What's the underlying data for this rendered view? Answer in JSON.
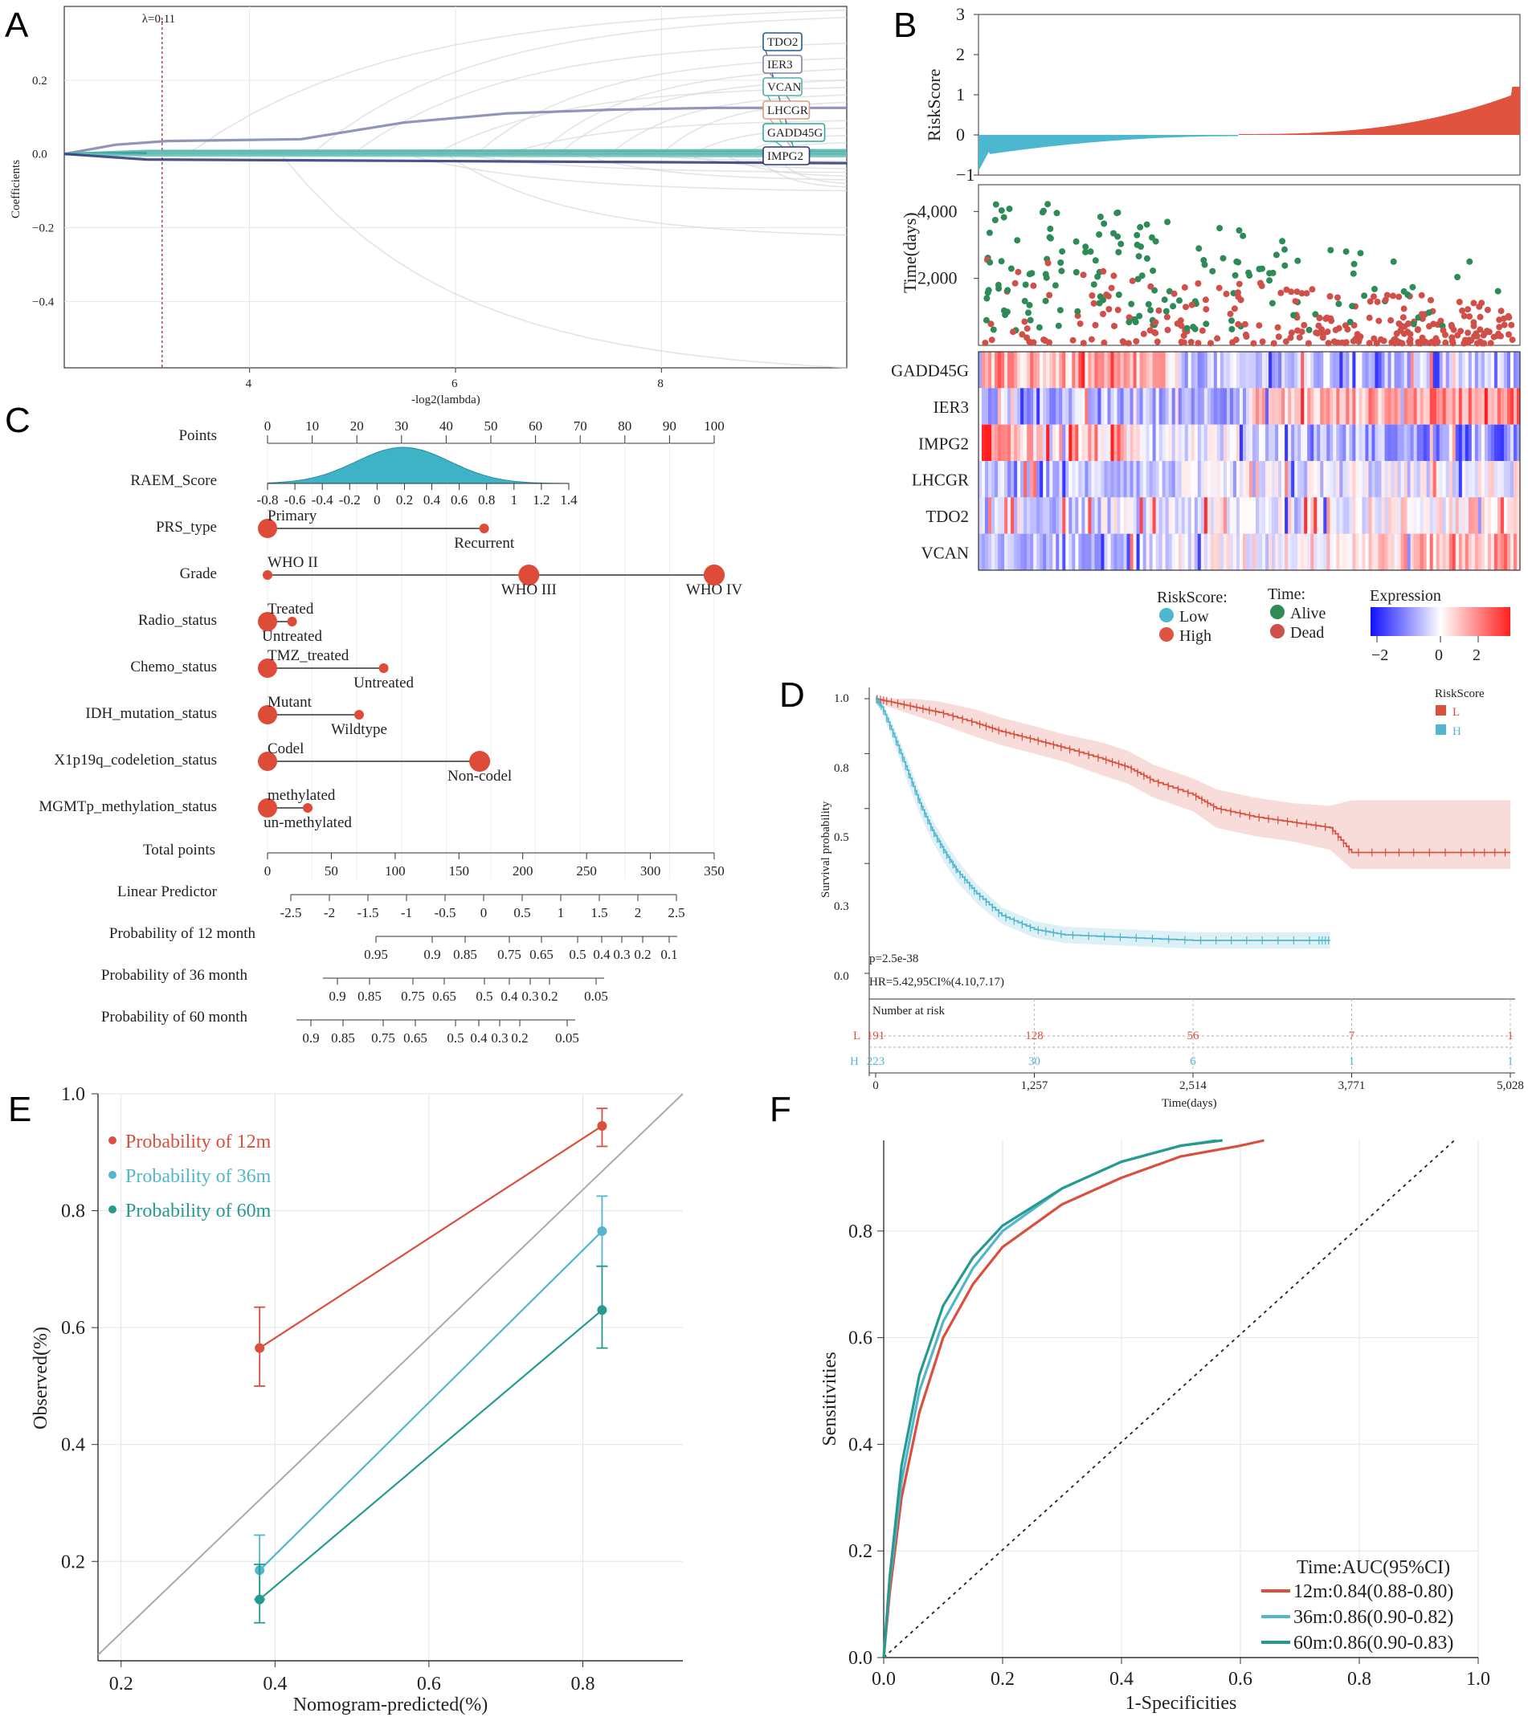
{
  "panels": {
    "A": "A",
    "B": "B",
    "C": "C",
    "D": "D",
    "E": "E",
    "F": "F"
  },
  "chart_data": [
    {
      "id": "A",
      "type": "line",
      "title": "",
      "xlabel": "-log2(lambda)",
      "ylabel": "Coefficients",
      "xticks": [
        "4",
        "6",
        "8"
      ],
      "yticks": [
        "0.2",
        "0.0",
        "−0.2",
        "−0.4"
      ],
      "xlim": [
        2.2,
        9.8
      ],
      "ylim": [
        -0.58,
        0.4
      ],
      "lambda_label": "λ=0.11",
      "lambda_x": 3.15,
      "series": [
        {
          "name": "TDO2",
          "color": "#1f5c8f",
          "x": [
            2.2,
            3.0,
            4.5,
            9.8
          ],
          "y": [
            0,
            0,
            0,
            0
          ]
        },
        {
          "name": "IER3",
          "color": "#7d83ad",
          "x": [
            2.2,
            2.7,
            3.2,
            4.5,
            5.5,
            6.5,
            7.5,
            8.5,
            9.8
          ],
          "y": [
            0,
            0.025,
            0.035,
            0.04,
            0.085,
            0.11,
            0.12,
            0.125,
            0.125
          ]
        },
        {
          "name": "VCAN",
          "color": "#4fb1a7",
          "x": [
            2.2,
            3.0,
            9.8
          ],
          "y": [
            0,
            0.008,
            0.01
          ]
        },
        {
          "name": "LHCGR",
          "color": "#2fa89c",
          "x": [
            2.2,
            3.0,
            9.8
          ],
          "y": [
            0,
            0.003,
            0.004
          ]
        },
        {
          "name": "GADD45G",
          "color": "#76c4bc",
          "x": [
            2.2,
            3.0,
            9.8
          ],
          "y": [
            0,
            -0.004,
            -0.006
          ]
        },
        {
          "name": "IMPG2",
          "color": "#2b3675",
          "x": [
            2.2,
            3.0,
            9.8
          ],
          "y": [
            0,
            -0.015,
            -0.025
          ]
        }
      ],
      "gene_labels": [
        "TDO2",
        "IER3",
        "VCAN",
        "LHCGR",
        "GADD45G",
        "IMPG2"
      ]
    },
    {
      "id": "B",
      "type": "bar",
      "title": "",
      "ylabel_top": "RiskScore",
      "yticks_top": [
        "3",
        "2",
        "1",
        "0",
        "−1"
      ],
      "ylabel_mid": "Time(days)",
      "yticks_mid": [
        "4,000",
        "2,000"
      ],
      "heatmap_genes": [
        "GADD45G",
        "IER3",
        "IMPG2",
        "LHCGR",
        "TDO2",
        "VCAN"
      ],
      "legend_risk_title": "RiskScore:",
      "legend_risk": [
        "Low",
        "High"
      ],
      "legend_time_title": "Time:",
      "legend_time": [
        "Alive",
        "Dead"
      ],
      "legend_expr_title": "Expression",
      "legend_expr_ticks": [
        "−2",
        "0",
        "2"
      ],
      "colors": {
        "low": "#4bb8d0",
        "high": "#e0533e",
        "alive": "#2e8b57",
        "dead": "#d04f49"
      }
    },
    {
      "id": "C",
      "type": "table",
      "title": "",
      "rows": [
        "Points",
        "RAEM_Score",
        "PRS_type",
        "Grade",
        "Radio_status",
        "Chemo_status",
        "IDH_mutation_status",
        "X1p19q_codeletion_status",
        "MGMTp_methylation_status",
        "Total points",
        "Linear Predictor",
        "Probability of 12 month",
        "Probability of 36 month",
        "Probability of 60 month"
      ],
      "points_ticks": [
        "0",
        "10",
        "20",
        "30",
        "40",
        "50",
        "60",
        "70",
        "80",
        "90",
        "100"
      ],
      "raem_ticks": [
        "-0.8",
        "-0.6",
        "-0.4",
        "-0.2",
        "0",
        "0.2",
        "0.4",
        "0.6",
        "0.8",
        "1",
        "1.2",
        "1.4"
      ],
      "categorical": [
        {
          "row": "PRS_type",
          "a": "Primary",
          "a_pts": 0,
          "b": "Recurrent",
          "b_pts": 48.5
        },
        {
          "row": "Grade",
          "a": "WHO II",
          "a_pts": 0,
          "b": "WHO IV",
          "b_pts": 100,
          "c": "WHO III",
          "c_pts": 58.5
        },
        {
          "row": "Radio_status",
          "a": "Treated",
          "a_pts": 0,
          "b": "Untreated",
          "b_pts": 5.5
        },
        {
          "row": "Chemo_status",
          "a": "TMZ_treated",
          "a_pts": 0,
          "b": "Untreated",
          "b_pts": 26
        },
        {
          "row": "IDH_mutation_status",
          "a": "Mutant",
          "a_pts": 0,
          "b": "Wildtype",
          "b_pts": 20.5
        },
        {
          "row": "X1p19q_codeletion_status",
          "a": "Codel",
          "a_pts": 0,
          "b": "Non-codel",
          "b_pts": 47.5
        },
        {
          "row": "MGMTp_methylation_status",
          "a": "methylated",
          "a_pts": 0,
          "b": "un-methylated",
          "b_pts": 9
        }
      ],
      "total_ticks": [
        "0",
        "50",
        "100",
        "150",
        "200",
        "250",
        "300",
        "350"
      ],
      "lp_ticks": [
        "-2.5",
        "-2",
        "-1.5",
        "-1",
        "-0.5",
        "0",
        "0.5",
        "1",
        "1.5",
        "2",
        "2.5"
      ],
      "p12_ticks": [
        "0.95",
        "0.9",
        "0.85",
        "0.75",
        "0.65",
        "0.5",
        "0.4",
        "0.3",
        "0.2",
        "0.1"
      ],
      "p36_ticks": [
        "0.9",
        "0.85",
        "0.75",
        "0.65",
        "0.5",
        "0.4",
        "0.3",
        "0.2",
        "0.05"
      ],
      "p60_ticks": [
        "0.9",
        "0.85",
        "0.75",
        "0.65",
        "0.5",
        "0.4",
        "0.3",
        "0.2",
        "0.05"
      ]
    },
    {
      "id": "D",
      "type": "line",
      "title": "",
      "xlabel": "Time(days)",
      "ylabel": "Survival probability",
      "xticks": [
        "0",
        "1,257",
        "2,514",
        "3,771",
        "5,028"
      ],
      "xtick_values": [
        0,
        1257,
        2514,
        3771,
        5028
      ],
      "yticks": [
        "1.0",
        "0.8",
        "0.5",
        "0.3",
        "0.0"
      ],
      "xlim": [
        0,
        5028
      ],
      "ylim": [
        0,
        1
      ],
      "legend_title": "RiskScore",
      "legend": [
        "L",
        "H"
      ],
      "pvalue": "p=2.5e-38",
      "hr": "HR=5.42,95CI%(4.10,7.17)",
      "risk_table_title": "Number at risk",
      "risk_L": [
        "191",
        "128",
        "56",
        "7",
        "1"
      ],
      "risk_H": [
        "223",
        "30",
        "6",
        "1",
        "1"
      ],
      "series": [
        {
          "name": "L",
          "color": "#d9503f",
          "x": [
            0,
            100,
            300,
            500,
            800,
            1000,
            1257,
            1500,
            1800,
            2000,
            2200,
            2514,
            2700,
            3000,
            3300,
            3600,
            3771,
            4200,
            4700,
            5028
          ],
          "y": [
            1.0,
            0.99,
            0.97,
            0.95,
            0.91,
            0.88,
            0.85,
            0.82,
            0.78,
            0.75,
            0.7,
            0.65,
            0.6,
            0.57,
            0.55,
            0.53,
            0.44,
            0.44,
            0.44,
            0.44
          ]
        },
        {
          "name": "H",
          "color": "#52b6cf",
          "x": [
            0,
            50,
            150,
            250,
            350,
            450,
            550,
            650,
            800,
            1000,
            1257,
            1500,
            2000,
            2514,
            3000,
            3500,
            3600
          ],
          "y": [
            1.0,
            0.97,
            0.86,
            0.74,
            0.62,
            0.52,
            0.44,
            0.37,
            0.29,
            0.21,
            0.16,
            0.14,
            0.13,
            0.12,
            0.12,
            0.12,
            0.12
          ]
        }
      ]
    },
    {
      "id": "E",
      "type": "line",
      "title": "",
      "xlabel": "Nomogram-predicted(%)",
      "ylabel": "Observed(%)",
      "xticks": [
        "0.2",
        "0.4",
        "0.6",
        "0.8"
      ],
      "yticks": [
        "1.0",
        "0.8",
        "0.6",
        "0.4",
        "0.2"
      ],
      "xlim": [
        0.17,
        0.93
      ],
      "ylim": [
        0.03,
        1.0
      ],
      "series": [
        {
          "name": "Probability of 12m",
          "color": "#d9503f",
          "x": [
            0.38,
            0.825
          ],
          "y": [
            0.565,
            0.945
          ],
          "err_low": [
            0.5,
            0.91
          ],
          "err_high": [
            0.635,
            0.975
          ]
        },
        {
          "name": "Probability of 36m",
          "color": "#52b6cf",
          "x": [
            0.38,
            0.825
          ],
          "y": [
            0.185,
            0.765
          ],
          "err_low": [
            0.135,
            0.705
          ],
          "err_high": [
            0.245,
            0.825
          ]
        },
        {
          "name": "Probability of 60m",
          "color": "#279a8f",
          "x": [
            0.38,
            0.825
          ],
          "y": [
            0.135,
            0.63
          ],
          "err_low": [
            0.095,
            0.565
          ],
          "err_high": [
            0.195,
            0.705
          ]
        }
      ]
    },
    {
      "id": "F",
      "type": "line",
      "title": "",
      "xlabel": "1-Specificities",
      "ylabel": "Sensitivities",
      "xticks": [
        "0.0",
        "0.2",
        "0.4",
        "0.6",
        "0.8",
        "1.0"
      ],
      "yticks": [
        "0.0",
        "0.2",
        "0.4",
        "0.6",
        "0.8"
      ],
      "xlim": [
        0,
        1
      ],
      "ylim": [
        0,
        0.97
      ],
      "legend_title": "Time:AUC(95%CI)",
      "series": [
        {
          "name": "12m:0.84(0.88-0.80)",
          "color": "#d9503f",
          "x": [
            0,
            0.01,
            0.03,
            0.06,
            0.1,
            0.15,
            0.2,
            0.3,
            0.4,
            0.5,
            0.6,
            0.64
          ],
          "y": [
            0,
            0.12,
            0.3,
            0.46,
            0.6,
            0.7,
            0.77,
            0.85,
            0.9,
            0.94,
            0.96,
            0.97
          ]
        },
        {
          "name": "36m:0.86(0.90-0.82)",
          "color": "#52b6cf",
          "x": [
            0,
            0.01,
            0.03,
            0.06,
            0.1,
            0.15,
            0.2,
            0.3,
            0.4,
            0.5,
            0.56
          ],
          "y": [
            0,
            0.14,
            0.33,
            0.5,
            0.63,
            0.73,
            0.8,
            0.88,
            0.93,
            0.96,
            0.97
          ]
        },
        {
          "name": "60m:0.86(0.90-0.83)",
          "color": "#279a8f",
          "x": [
            0,
            0.01,
            0.03,
            0.06,
            0.1,
            0.15,
            0.2,
            0.3,
            0.4,
            0.5,
            0.57
          ],
          "y": [
            0,
            0.15,
            0.36,
            0.53,
            0.66,
            0.75,
            0.81,
            0.88,
            0.93,
            0.96,
            0.97
          ]
        }
      ]
    }
  ]
}
